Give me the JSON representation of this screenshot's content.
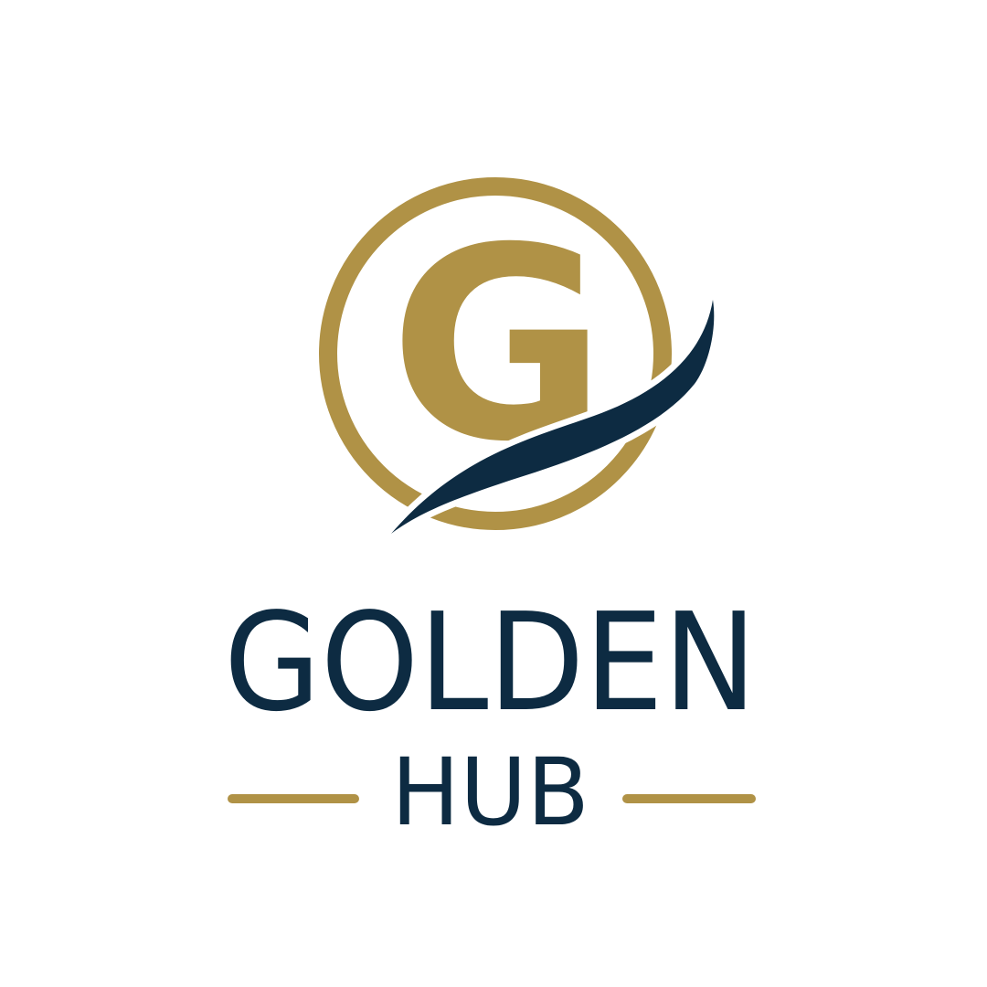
{
  "logo": {
    "monogram": "G",
    "name": "GOLDEN",
    "tagline": "HUB"
  }
}
